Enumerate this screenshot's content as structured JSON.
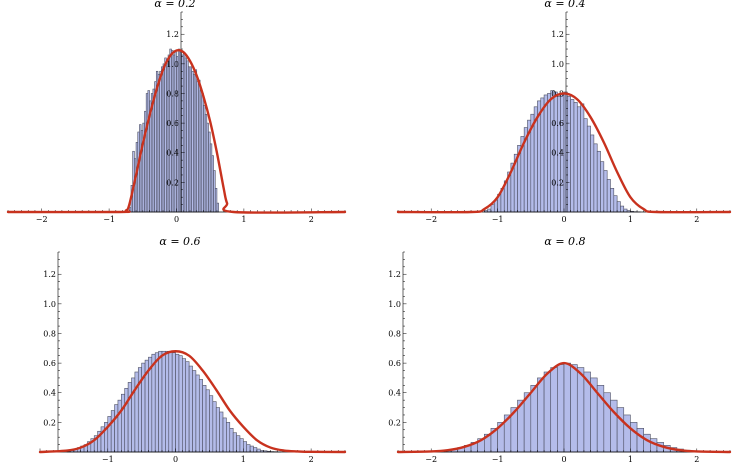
{
  "colors": {
    "bar_fill": "#b4bcea",
    "bar_edge": "#4d4f62",
    "curve": "#c8321e",
    "axis": "#000000"
  },
  "chart_data": [
    {
      "type": "bar",
      "title": "α = 0.2",
      "xlim": [
        -2.5,
        2.5
      ],
      "ylim": [
        0,
        1.35
      ],
      "x_ticks": [
        -2,
        -1,
        0,
        1,
        2
      ],
      "y_ticks": [
        0.2,
        0.4,
        0.6,
        0.8,
        1.0,
        1.2
      ],
      "x_tick_labels": [
        "−2",
        "−1",
        "0",
        "1",
        "2"
      ],
      "y_tick_labels": [
        "0.2",
        "0.4",
        "0.6",
        "0.8",
        "1.0",
        "1.2"
      ],
      "grid": false,
      "histogram": {
        "bin_start": -0.7,
        "bin_width": 0.025,
        "values": [
          0.03,
          0.18,
          0.41,
          0.36,
          0.47,
          0.54,
          0.59,
          0.55,
          0.6,
          0.68,
          0.8,
          0.82,
          0.75,
          0.8,
          0.83,
          0.88,
          0.95,
          0.93,
          0.95,
          0.98,
          1.0,
          1.04,
          1.0,
          1.06,
          1.1,
          1.09,
          1.06,
          1.08,
          1.05,
          1.1,
          1.08,
          1.06,
          1.07,
          1.04,
          1.02,
          0.98,
          0.98,
          0.95,
          0.93,
          0.96,
          0.88,
          0.89,
          0.82,
          0.8,
          0.72,
          0.66,
          0.6,
          0.54,
          0.46,
          0.38,
          0.28,
          0.16,
          0.06
        ]
      },
      "curve": {
        "x": [
          -2.5,
          -0.85,
          -0.75,
          -0.7,
          -0.6,
          -0.5,
          -0.4,
          -0.3,
          -0.2,
          -0.1,
          0.0,
          0.1,
          0.2,
          0.3,
          0.4,
          0.5,
          0.6,
          0.7,
          0.75,
          0.85,
          2.5
        ],
        "y": [
          0.0,
          0.0,
          0.01,
          0.05,
          0.25,
          0.46,
          0.65,
          0.82,
          0.96,
          1.05,
          1.09,
          1.08,
          1.02,
          0.92,
          0.78,
          0.61,
          0.4,
          0.16,
          0.06,
          0.0,
          0.0
        ]
      }
    },
    {
      "type": "bar",
      "title": "α = 0.4",
      "xlim": [
        -2.5,
        2.5
      ],
      "ylim": [
        0,
        1.35
      ],
      "x_ticks": [
        -2,
        -1,
        0,
        1,
        2
      ],
      "y_ticks": [
        0.2,
        0.4,
        0.6,
        0.8,
        1.0,
        1.2
      ],
      "x_tick_labels": [
        "−2",
        "−1",
        "0",
        "1",
        "2"
      ],
      "y_tick_labels": [
        "0.2",
        "0.4",
        "0.6",
        "0.8",
        "1.0",
        "1.2"
      ],
      "grid": false,
      "histogram": {
        "bin_start": -1.2,
        "bin_width": 0.05,
        "values": [
          0.01,
          0.02,
          0.05,
          0.08,
          0.12,
          0.16,
          0.21,
          0.27,
          0.33,
          0.39,
          0.45,
          0.51,
          0.57,
          0.62,
          0.66,
          0.71,
          0.75,
          0.77,
          0.79,
          0.8,
          0.82,
          0.81,
          0.78,
          0.8,
          0.81,
          0.78,
          0.76,
          0.74,
          0.71,
          0.73,
          0.63,
          0.58,
          0.52,
          0.46,
          0.41,
          0.34,
          0.28,
          0.22,
          0.16,
          0.11,
          0.07,
          0.04,
          0.02,
          0.01,
          0.005,
          0.002,
          0.001,
          0.0
        ]
      },
      "curve": {
        "x": [
          -2.5,
          -1.4,
          -1.2,
          -1.0,
          -0.8,
          -0.6,
          -0.4,
          -0.2,
          0.0,
          0.2,
          0.4,
          0.6,
          0.8,
          1.0,
          1.2,
          1.4,
          2.5
        ],
        "y": [
          0.0,
          0.0,
          0.02,
          0.1,
          0.27,
          0.47,
          0.64,
          0.76,
          0.8,
          0.76,
          0.64,
          0.47,
          0.27,
          0.1,
          0.02,
          0.0,
          0.0
        ]
      }
    },
    {
      "type": "bar",
      "title": "α = 0.6",
      "xlim": [
        -2.0,
        2.5
      ],
      "ylim": [
        0,
        1.35
      ],
      "x_ticks": [
        -1,
        0,
        1,
        2
      ],
      "y_ticks": [
        0.2,
        0.4,
        0.6,
        0.8,
        1.0,
        1.2
      ],
      "x_tick_labels": [
        "−1",
        "0",
        "1",
        "2"
      ],
      "y_tick_labels": [
        "0.2",
        "0.4",
        "0.6",
        "0.8",
        "1.0",
        "1.2"
      ],
      "grid": false,
      "histogram": {
        "bin_start": -1.6,
        "bin_width": 0.05,
        "values": [
          0.005,
          0.01,
          0.02,
          0.03,
          0.04,
          0.05,
          0.07,
          0.09,
          0.11,
          0.14,
          0.17,
          0.2,
          0.24,
          0.28,
          0.32,
          0.35,
          0.39,
          0.43,
          0.47,
          0.5,
          0.54,
          0.57,
          0.6,
          0.62,
          0.64,
          0.66,
          0.67,
          0.68,
          0.68,
          0.68,
          0.68,
          0.67,
          0.66,
          0.65,
          0.63,
          0.61,
          0.58,
          0.55,
          0.52,
          0.49,
          0.45,
          0.42,
          0.38,
          0.34,
          0.3,
          0.27,
          0.23,
          0.2,
          0.16,
          0.13,
          0.11,
          0.09,
          0.07,
          0.05,
          0.04,
          0.03,
          0.02,
          0.01,
          0.008,
          0.005,
          0.003,
          0.002,
          0.001
        ]
      },
      "curve": {
        "x": [
          -2.0,
          -1.6,
          -1.4,
          -1.2,
          -1.0,
          -0.8,
          -0.6,
          -0.4,
          -0.2,
          0.0,
          0.2,
          0.4,
          0.6,
          0.8,
          1.0,
          1.2,
          1.4,
          1.6,
          1.8,
          2.0,
          2.5
        ],
        "y": [
          0.0,
          0.01,
          0.03,
          0.08,
          0.17,
          0.28,
          0.42,
          0.55,
          0.65,
          0.68,
          0.65,
          0.55,
          0.42,
          0.28,
          0.17,
          0.08,
          0.03,
          0.01,
          0.004,
          0.001,
          0.0
        ]
      }
    },
    {
      "type": "bar",
      "title": "α = 0.8",
      "xlim": [
        -2.5,
        2.5
      ],
      "ylim": [
        0,
        1.35
      ],
      "x_ticks": [
        -2,
        -1,
        0,
        1,
        2
      ],
      "y_ticks": [
        0.2,
        0.4,
        0.6,
        0.8,
        1.0,
        1.2
      ],
      "x_tick_labels": [
        "−2",
        "−1",
        "0",
        "1",
        "2"
      ],
      "y_tick_labels": [
        "0.2",
        "0.4",
        "0.6",
        "0.8",
        "1.0",
        "1.2"
      ],
      "grid": false,
      "histogram": {
        "bin_start": -2.0,
        "bin_width": 0.1,
        "values": [
          0.004,
          0.008,
          0.012,
          0.02,
          0.03,
          0.045,
          0.065,
          0.09,
          0.12,
          0.16,
          0.2,
          0.25,
          0.3,
          0.35,
          0.4,
          0.45,
          0.5,
          0.54,
          0.57,
          0.59,
          0.6,
          0.59,
          0.57,
          0.54,
          0.5,
          0.45,
          0.4,
          0.35,
          0.3,
          0.25,
          0.2,
          0.16,
          0.12,
          0.09,
          0.065,
          0.045,
          0.03,
          0.02,
          0.012,
          0.008,
          0.004
        ]
      },
      "curve": {
        "x": [
          -2.5,
          -2.0,
          -1.75,
          -1.5,
          -1.25,
          -1.0,
          -0.75,
          -0.5,
          -0.25,
          0.0,
          0.25,
          0.5,
          0.75,
          1.0,
          1.25,
          1.5,
          1.75,
          2.0,
          2.5
        ],
        "y": [
          0.0,
          0.004,
          0.012,
          0.035,
          0.08,
          0.16,
          0.27,
          0.4,
          0.53,
          0.6,
          0.53,
          0.4,
          0.27,
          0.16,
          0.08,
          0.035,
          0.012,
          0.004,
          0.0
        ]
      }
    }
  ]
}
